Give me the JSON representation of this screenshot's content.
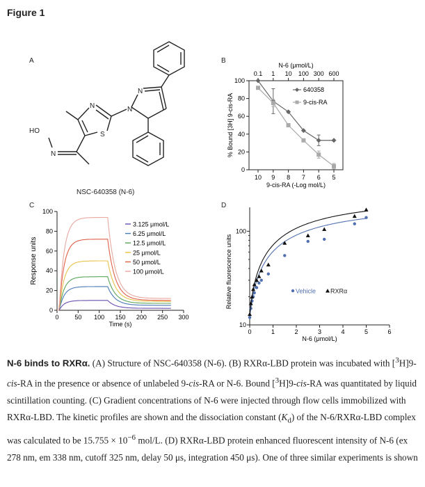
{
  "figure_title": "Figure 1",
  "panels": {
    "A": {
      "letter": "A",
      "compound_label": "NSC-640358 (N-6)",
      "atoms": {
        "n1": "N",
        "n2": "N",
        "n3": "N",
        "s": "S",
        "n_oxime": "N",
        "ho": "HO"
      }
    },
    "B": {
      "letter": "B"
    },
    "C": {
      "letter": "C"
    },
    "D": {
      "letter": "D"
    }
  },
  "chart_data": [
    {
      "panel": "B",
      "type": "line",
      "xlabel": "9-cis-RA (-Log mol/L)",
      "xlabel_top": "N-6 (μmol/L)",
      "ylabel": "% Bound [3H] 9-cis-RA",
      "x_ticks": [
        "10",
        "9",
        "8",
        "7",
        "6",
        "5"
      ],
      "x_top_ticks": [
        "0.1",
        "1",
        "10",
        "100",
        "300",
        "600"
      ],
      "y_ticks": [
        "0",
        "20",
        "40",
        "60",
        "80",
        "100"
      ],
      "ylim": [
        0,
        100
      ],
      "grid": false,
      "legend": "top-right",
      "series": [
        {
          "name": "640358",
          "marker": "diamond",
          "color": "#666666",
          "x": [
            0,
            1,
            2,
            3,
            4,
            5
          ],
          "values": [
            100,
            77,
            65,
            44,
            33,
            33
          ],
          "err": [
            0,
            14,
            0,
            0,
            6,
            0
          ]
        },
        {
          "name": "9-cis-RA",
          "marker": "square",
          "color": "#aaaaaa",
          "x": [
            0,
            1,
            2,
            3,
            4,
            5
          ],
          "values": [
            92,
            75,
            50,
            33,
            17,
            4
          ],
          "err": [
            0,
            4,
            0,
            0,
            4,
            3
          ]
        }
      ]
    },
    {
      "panel": "C",
      "type": "line",
      "xlabel": "Time (s)",
      "ylabel": "Response units",
      "x_ticks": [
        "0",
        "50",
        "100",
        "150",
        "200",
        "250",
        "300"
      ],
      "y_ticks": [
        "0",
        "20",
        "40",
        "60",
        "80",
        "100"
      ],
      "xlim": [
        0,
        300
      ],
      "ylim": [
        0,
        100
      ],
      "grid": false,
      "legend": "top-right",
      "series": [
        {
          "name": "3.125 μmol/L",
          "color": "#6a4fb0",
          "plateau": 10,
          "end": 2
        },
        {
          "name": "6.25 μmol/L",
          "color": "#4a78b8",
          "plateau": 24,
          "end": 5
        },
        {
          "name": "12.5 μmol/L",
          "color": "#5aa55a",
          "plateau": 34,
          "end": 7
        },
        {
          "name": "25 μmol/L",
          "color": "#e8c24a",
          "plateau": 50,
          "end": 9
        },
        {
          "name": "50 μmol/L",
          "color": "#e0604a",
          "plateau": 72,
          "end": 10
        },
        {
          "name": "100 μmol/L",
          "color": "#e8a8a0",
          "plateau": 94,
          "end": 12
        }
      ]
    },
    {
      "panel": "D",
      "type": "scatter",
      "xlabel": "N-6 (μmol/L)",
      "ylabel": "Relative fluorescence units",
      "x_ticks": [
        "0",
        "1",
        "2",
        "3",
        "4",
        "5",
        "6"
      ],
      "y_ticks": [
        "10",
        "100"
      ],
      "xlim": [
        0,
        6
      ],
      "ylim": [
        10,
        180
      ],
      "y_scale": "log",
      "grid": false,
      "legend": "bottom-right",
      "series": [
        {
          "name": "Vehicle",
          "marker": "circle",
          "color": "#5070b0",
          "x": [
            0,
            0.05,
            0.1,
            0.15,
            0.2,
            0.3,
            0.4,
            0.5,
            0.8,
            1.5,
            2.5,
            3.2,
            4.5,
            5.0
          ],
          "values": [
            12,
            15,
            18,
            20,
            22,
            25,
            28,
            30,
            35,
            55,
            78,
            82,
            120,
            140
          ]
        },
        {
          "name": "RXRα",
          "marker": "triangle",
          "color": "#111111",
          "x": [
            0,
            0.05,
            0.1,
            0.15,
            0.2,
            0.3,
            0.4,
            0.5,
            0.8,
            1.5,
            2.5,
            3.2,
            4.5,
            5.0
          ],
          "values": [
            13,
            17,
            20,
            24,
            27,
            30,
            33,
            38,
            44,
            75,
            90,
            105,
            145,
            170
          ]
        }
      ]
    }
  ],
  "caption": {
    "bold_lead": "N-6 binds to RXRα.",
    "t1": " (A) Structure of NSC-640358 (N-6). (B) RXRα-LBD protein was incubated with [",
    "sup_3a": "3",
    "t2": "H]9-",
    "cis_a": "cis",
    "t3": "-RA in the presence or absence of unlabeled 9-",
    "cis_b": "cis",
    "t4": "-RA or N-6. Bound [",
    "sup_3b": "3",
    "t5": "H]9-",
    "cis_c": "cis",
    "t6": "-RA was quantitated by liquid scintillation counting. (C) Gradient concentrations of N-6 were injected through flow cells immobilized with RXRα-LBD. The kinetic profiles are shown and the dissociation constant (",
    "kd_k": "K",
    "kd_d": "d",
    "t7": ") of the N-6/RXRα-LBD complex was calculated to be 15.755 × 10",
    "sup_exp": "−6",
    "t8": " mol/L. (D) RXRα-LBD protein enhanced fluorescent intensity of N-6 (ex 278 nm, em 338 nm, cutoff 325 nm, delay 50 μs, integration 450 μs). One of three similar experiments is shown"
  }
}
